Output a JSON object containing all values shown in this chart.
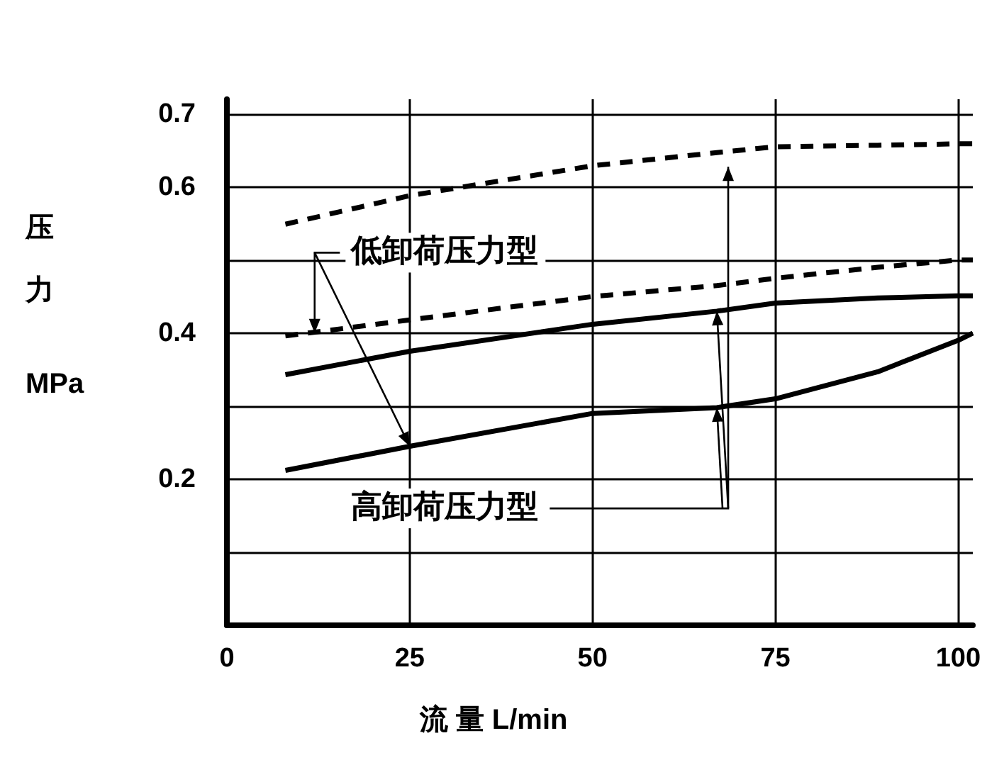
{
  "chart_data": {
    "type": "line",
    "xlabel": "流 量 L/min",
    "ylabel": "压力 MPa",
    "x": [
      8,
      25,
      50,
      67,
      75,
      89,
      100,
      102
    ],
    "series": [
      {
        "color": "#000000",
        "line_style": "dashed",
        "values": [
          0.549,
          0.588,
          0.629,
          0.647,
          0.655,
          0.657,
          0.659,
          0.659
        ]
      },
      {
        "color": "#000000",
        "line_style": "dashed",
        "values": [
          0.396,
          0.418,
          0.45,
          0.465,
          0.475,
          0.49,
          0.5,
          0.5
        ]
      },
      {
        "color": "#000000",
        "line_style": "solid",
        "values": [
          0.343,
          0.375,
          0.412,
          0.43,
          0.441,
          0.448,
          0.451,
          0.451
        ]
      },
      {
        "color": "#000000",
        "line_style": "solid",
        "values": [
          0.212,
          0.245,
          0.29,
          0.298,
          0.31,
          0.347,
          0.39,
          0.4
        ]
      }
    ],
    "xlim": [
      0,
      102
    ],
    "xticks": [
      0,
      25,
      50,
      75,
      100
    ],
    "ylim": [
      0,
      0.72
    ],
    "yticks": [
      {
        "value": 0,
        "label": null
      },
      {
        "value": 0.1,
        "label": null
      },
      0.2,
      {
        "value": 0.3,
        "label": null
      },
      0.4,
      {
        "value": 0.5,
        "label": null
      },
      0.6,
      0.7
    ],
    "annotations": [
      {
        "text": "低卸荷压力型",
        "x": 12,
        "y": 0.4
      },
      {
        "text": "高卸荷压力型",
        "x": 67,
        "y": 0.43
      }
    ],
    "grid": true,
    "marker": "none"
  }
}
